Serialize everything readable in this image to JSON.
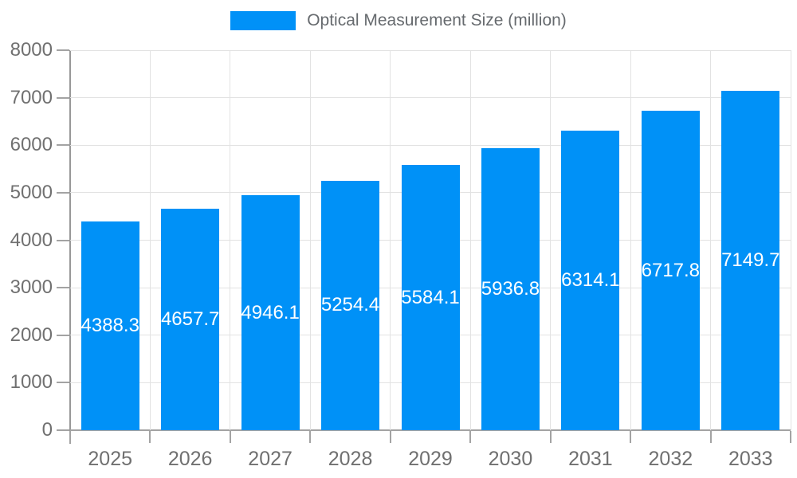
{
  "legend": {
    "label": "Optical Measurement Size (million)",
    "swatch_color": "#0091f7"
  },
  "chart_data": {
    "type": "bar",
    "title": "Optical Measurement Size (million)",
    "categories": [
      "2025",
      "2026",
      "2027",
      "2028",
      "2029",
      "2030",
      "2031",
      "2032",
      "2033"
    ],
    "series": [
      {
        "name": "Optical Measurement Size (million)",
        "values": [
          4388.3,
          4657.7,
          4946.1,
          5254.4,
          5584.1,
          5936.8,
          6314.1,
          6717.8,
          7149.7
        ]
      }
    ],
    "xlabel": "",
    "ylabel": "",
    "ylim": [
      0,
      8000
    ],
    "yticks": [
      0,
      1000,
      2000,
      3000,
      4000,
      5000,
      6000,
      7000,
      8000
    ],
    "grid": true,
    "legend_position": "top",
    "bar_color": "#0091f7",
    "bar_label_color": "#ffffff",
    "axis_text_color": "#707070"
  }
}
